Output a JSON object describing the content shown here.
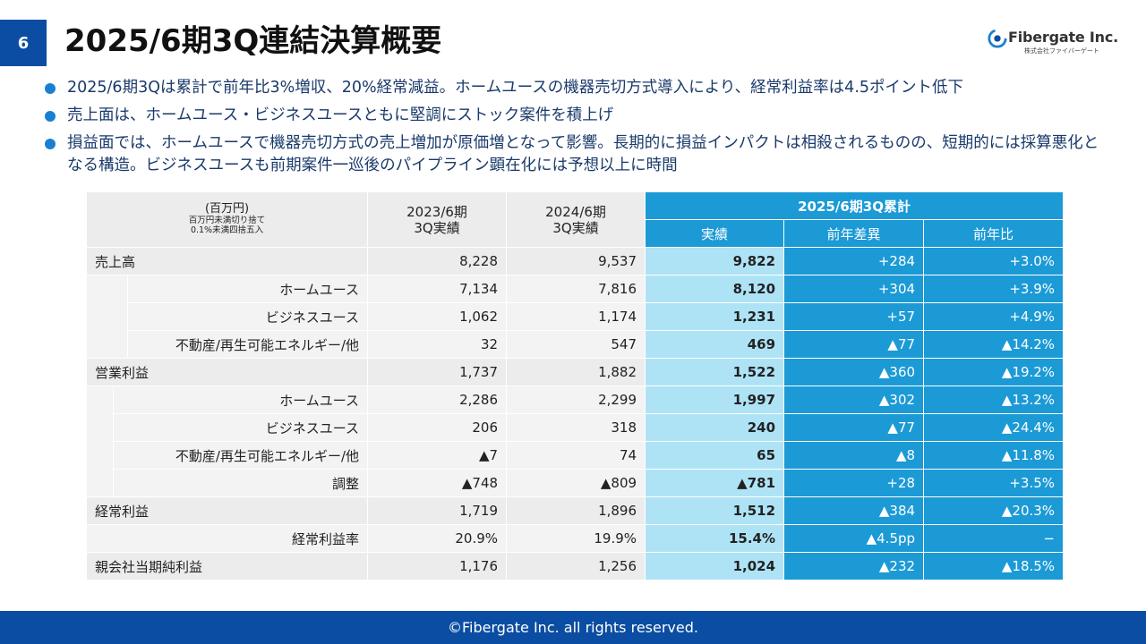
{
  "page_number": "6",
  "title": "2025/6期3Q連結決算概要",
  "logo": {
    "name": "Fibergate Inc.",
    "sub": "株式会社ファイバーゲート",
    "accent_color": "#1a7fd0"
  },
  "bullets": [
    "2025/6期3Qは累計で前年比3%増収、20%経常減益。ホームユースの機器売切方式導入により、経常利益率は4.5ポイント低下",
    "売上面は、ホームユース・ビジネスユースともに堅調にストック案件を積上げ",
    "損益面では、ホームユースで機器売切方式の売上増加が原価増となって影響。長期的に損益インパクトは相殺されるものの、短期的には採算悪化となる構造。ビジネスユースも前期案件一巡後のパイプライン顕在化には予想以上に時間"
  ],
  "table": {
    "header": {
      "unit": "(百万円)",
      "unit_note1": "百万円未満切り捨て",
      "unit_note2": "0.1%未満四捨五入",
      "col1_line1": "2023/6期",
      "col1_line2": "3Q実績",
      "col2_line1": "2024/6期",
      "col2_line2": "3Q実績",
      "current_group": "2025/6期3Q累計",
      "actual": "実績",
      "yoy_diff": "前年差異",
      "yoy_ratio": "前年比"
    },
    "rows": [
      {
        "label": "売上高",
        "fy23": "8,228",
        "fy24": "9,537",
        "actual": "9,822",
        "diff": "+284",
        "ratio": "+3.0%"
      },
      {
        "label": "ホームユース",
        "fy23": "7,134",
        "fy24": "7,816",
        "actual": "8,120",
        "diff": "+304",
        "ratio": "+3.9%"
      },
      {
        "label": "ビジネスユース",
        "fy23": "1,062",
        "fy24": "1,174",
        "actual": "1,231",
        "diff": "+57",
        "ratio": "+4.9%"
      },
      {
        "label": "不動産/再生可能エネルギー/他",
        "fy23": "32",
        "fy24": "547",
        "actual": "469",
        "diff": "▲77",
        "ratio": "▲14.2%"
      },
      {
        "label": "営業利益",
        "fy23": "1,737",
        "fy24": "1,882",
        "actual": "1,522",
        "diff": "▲360",
        "ratio": "▲19.2%"
      },
      {
        "label": "ホームユース",
        "fy23": "2,286",
        "fy24": "2,299",
        "actual": "1,997",
        "diff": "▲302",
        "ratio": "▲13.2%"
      },
      {
        "label": "ビジネスユース",
        "fy23": "206",
        "fy24": "318",
        "actual": "240",
        "diff": "▲77",
        "ratio": "▲24.4%"
      },
      {
        "label": "不動産/再生可能エネルギー/他",
        "fy23": "▲7",
        "fy24": "74",
        "actual": "65",
        "diff": "▲8",
        "ratio": "▲11.8%"
      },
      {
        "label": "調整",
        "fy23": "▲748",
        "fy24": "▲809",
        "actual": "▲781",
        "diff": "+28",
        "ratio": "+3.5%"
      },
      {
        "label": "経常利益",
        "fy23": "1,719",
        "fy24": "1,896",
        "actual": "1,512",
        "diff": "▲384",
        "ratio": "▲20.3%"
      },
      {
        "label": "経常利益率",
        "fy23": "20.9%",
        "fy24": "19.9%",
        "actual": "15.4%",
        "diff": "▲4.5pp",
        "ratio": "−"
      },
      {
        "label": "親会社当期純利益",
        "fy23": "1,176",
        "fy24": "1,256",
        "actual": "1,024",
        "diff": "▲232",
        "ratio": "▲18.5%"
      }
    ]
  },
  "footer": "©Fibergate Inc. all rights reserved.",
  "colors": {
    "brand_blue": "#0b4da2",
    "table_blue": "#1b9ad6",
    "table_light_blue": "#aee3f6",
    "bullet_text": "#1a3a6b"
  }
}
